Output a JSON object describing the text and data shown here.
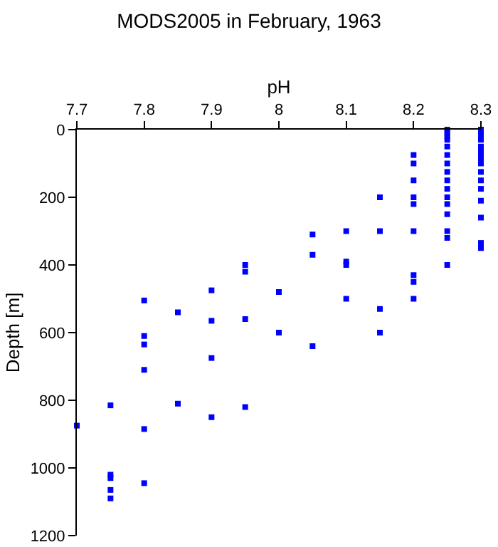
{
  "chart_data": {
    "type": "scatter",
    "title": "MODS2005 in February, 1963",
    "xlabel": "pH",
    "ylabel": "Depth [m]",
    "x": [
      8.3,
      8.3,
      8.3,
      8.3,
      8.3,
      8.3,
      8.3,
      8.3,
      8.3,
      8.3,
      8.3,
      8.3,
      8.3,
      8.3,
      8.3,
      8.3,
      8.25,
      8.25,
      8.25,
      8.25,
      8.25,
      8.25,
      8.25,
      8.25,
      8.25,
      8.25,
      8.25,
      8.25,
      8.25,
      8.25,
      8.25,
      8.25,
      8.2,
      8.2,
      8.2,
      8.2,
      8.2,
      8.2,
      8.2,
      8.2,
      8.2,
      8.15,
      8.15,
      8.15,
      8.15,
      8.1,
      8.1,
      8.1,
      8.1,
      8.05,
      8.05,
      8.05,
      8.0,
      8.0,
      7.95,
      7.95,
      7.95,
      7.95,
      7.9,
      7.9,
      7.9,
      7.9,
      7.85,
      7.85,
      7.8,
      7.8,
      7.8,
      7.8,
      7.8,
      7.8,
      7.75,
      7.75,
      7.75,
      7.75,
      7.75,
      7.7
    ],
    "values": [
      0,
      10,
      20,
      30,
      50,
      60,
      75,
      90,
      100,
      125,
      150,
      175,
      210,
      260,
      335,
      350,
      0,
      10,
      20,
      30,
      50,
      75,
      100,
      125,
      150,
      175,
      200,
      220,
      250,
      300,
      320,
      400,
      75,
      100,
      150,
      200,
      220,
      300,
      430,
      450,
      500,
      200,
      300,
      530,
      600,
      300,
      390,
      400,
      500,
      310,
      370,
      640,
      480,
      600,
      400,
      420,
      560,
      820,
      475,
      565,
      675,
      850,
      540,
      810,
      505,
      610,
      635,
      710,
      885,
      1045,
      815,
      1020,
      1030,
      1065,
      1090,
      875
    ],
    "color": "#0000ff",
    "marker": "square",
    "xlim": [
      7.7,
      8.3
    ],
    "xticks": [
      7.7,
      7.8,
      7.9,
      8,
      8.1,
      8.2,
      8.3
    ],
    "ylim": [
      1200,
      0
    ],
    "yticks": [
      0,
      200,
      400,
      600,
      800,
      1000,
      1200
    ],
    "grid": false,
    "legend": false
  }
}
